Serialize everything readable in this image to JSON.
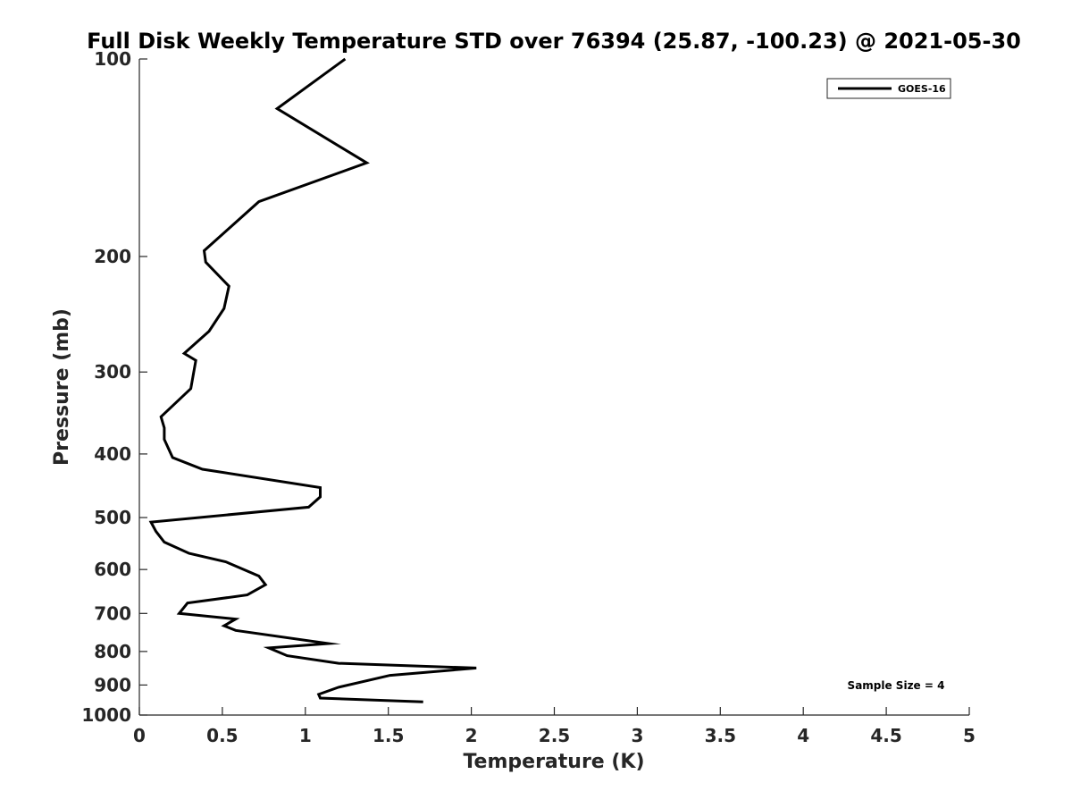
{
  "chart_data": {
    "type": "line",
    "title": "Full Disk Weekly Temperature STD over 76394 (25.87, -100.23) @ 2021-05-30",
    "xlabel": "Temperature (K)",
    "ylabel": "Pressure (mb)",
    "xlim": [
      0,
      5
    ],
    "ylim": [
      100,
      1000
    ],
    "y_scale": "log",
    "y_reversed": true,
    "xticks": [
      "0",
      "0.5",
      "1",
      "1.5",
      "2",
      "2.5",
      "3",
      "3.5",
      "4",
      "4.5",
      "5"
    ],
    "yticks": [
      "100",
      "200",
      "300",
      "400",
      "500",
      "600",
      "700",
      "800",
      "900",
      "1000"
    ],
    "legend_position": "top-right",
    "grid": false,
    "annotation": "Sample Size = 4",
    "series": [
      {
        "name": "GOES-16",
        "color": "#000000",
        "x": [
          1.24,
          0.83,
          1.37,
          0.72,
          0.39,
          0.4,
          0.54,
          0.51,
          0.42,
          0.27,
          0.34,
          0.31,
          0.13,
          0.15,
          0.15,
          0.2,
          0.38,
          1.09,
          1.09,
          1.02,
          0.07,
          0.1,
          0.15,
          0.3,
          0.52,
          0.72,
          0.76,
          0.65,
          0.29,
          0.24,
          0.58,
          0.51,
          0.58,
          1.14,
          0.78,
          0.89,
          1.2,
          2.03,
          1.51,
          1.2,
          1.08,
          1.09,
          1.71
        ],
        "y": [
          100,
          119,
          144,
          165,
          196,
          204,
          222,
          240,
          260,
          281,
          288,
          318,
          351,
          365,
          380,
          405,
          422,
          450,
          465,
          482,
          508,
          525,
          545,
          567,
          584,
          614,
          633,
          656,
          675,
          700,
          714,
          731,
          743,
          778,
          790,
          812,
          834,
          848,
          870,
          907,
          930,
          942,
          955
        ]
      }
    ]
  }
}
